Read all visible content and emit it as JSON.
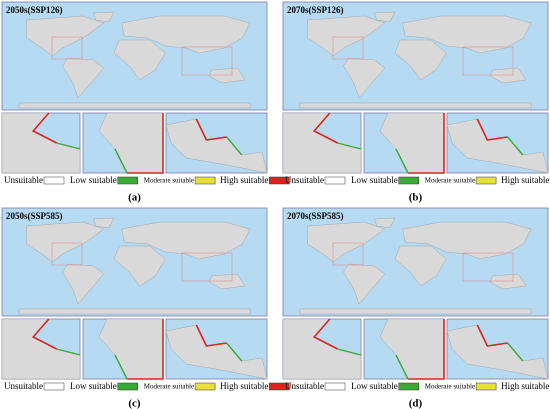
{
  "panels": [
    {
      "title": "2050s(SSP126)",
      "caption": "(a)"
    },
    {
      "title": "2070s(SSP126)",
      "caption": "(b)"
    },
    {
      "title": "2050s(SSP585)",
      "caption": "(c)"
    },
    {
      "title": "2070s(SSP585)",
      "caption": "(d)"
    }
  ],
  "legend": {
    "items": [
      {
        "label": "Unsuitable",
        "color": "#ffffff"
      },
      {
        "label": "Low suitable",
        "color": "#3aa935"
      },
      {
        "label": "Moderate suitable",
        "color": "#e8e03a"
      },
      {
        "label": "High suitable",
        "color": "#d7261e"
      }
    ]
  }
}
